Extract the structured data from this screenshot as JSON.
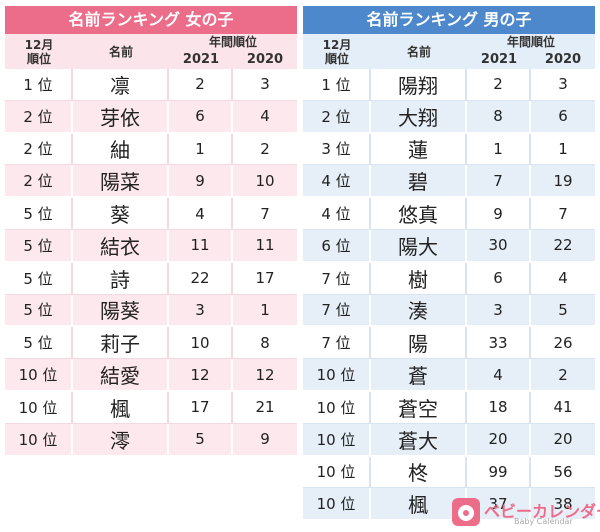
{
  "girls": {
    "title": "名前ランキング 女の子",
    "header": {
      "rank_line1": "12月",
      "rank_line2": "順位",
      "name": "名前",
      "annual": "年間順位",
      "y2021": "2021",
      "y2020": "2020"
    },
    "rows": [
      {
        "rank": "1 位",
        "name": "凛",
        "r2021": "2",
        "r2020": "3"
      },
      {
        "rank": "2 位",
        "name": "芽依",
        "r2021": "6",
        "r2020": "4"
      },
      {
        "rank": "2 位",
        "name": "紬",
        "r2021": "1",
        "r2020": "2"
      },
      {
        "rank": "2 位",
        "name": "陽菜",
        "r2021": "9",
        "r2020": "10"
      },
      {
        "rank": "5 位",
        "name": "葵",
        "r2021": "4",
        "r2020": "7"
      },
      {
        "rank": "5 位",
        "name": "結衣",
        "r2021": "11",
        "r2020": "11"
      },
      {
        "rank": "5 位",
        "name": "詩",
        "r2021": "22",
        "r2020": "17"
      },
      {
        "rank": "5 位",
        "name": "陽葵",
        "r2021": "3",
        "r2020": "1"
      },
      {
        "rank": "5 位",
        "name": "莉子",
        "r2021": "10",
        "r2020": "8"
      },
      {
        "rank": "10 位",
        "name": "結愛",
        "r2021": "12",
        "r2020": "12"
      },
      {
        "rank": "10 位",
        "name": "楓",
        "r2021": "17",
        "r2020": "21"
      },
      {
        "rank": "10 位",
        "name": "澪",
        "r2021": "5",
        "r2020": "9"
      }
    ]
  },
  "boys": {
    "title": "名前ランキング 男の子",
    "header": {
      "rank_line1": "12月",
      "rank_line2": "順位",
      "name": "名前",
      "annual": "年間順位",
      "y2021": "2021",
      "y2020": "2020"
    },
    "rows": [
      {
        "rank": "1 位",
        "name": "陽翔",
        "r2021": "2",
        "r2020": "3"
      },
      {
        "rank": "2 位",
        "name": "大翔",
        "r2021": "8",
        "r2020": "6"
      },
      {
        "rank": "3 位",
        "name": "蓮",
        "r2021": "1",
        "r2020": "1"
      },
      {
        "rank": "4 位",
        "name": "碧",
        "r2021": "7",
        "r2020": "19"
      },
      {
        "rank": "4 位",
        "name": "悠真",
        "r2021": "9",
        "r2020": "7"
      },
      {
        "rank": "6 位",
        "name": "陽大",
        "r2021": "30",
        "r2020": "22"
      },
      {
        "rank": "7 位",
        "name": "樹",
        "r2021": "6",
        "r2020": "4"
      },
      {
        "rank": "7 位",
        "name": "湊",
        "r2021": "3",
        "r2020": "5"
      },
      {
        "rank": "7 位",
        "name": "陽",
        "r2021": "33",
        "r2020": "26"
      },
      {
        "rank": "10 位",
        "name": "蒼",
        "r2021": "4",
        "r2020": "2"
      },
      {
        "rank": "10 位",
        "name": "蒼空",
        "r2021": "18",
        "r2020": "41"
      },
      {
        "rank": "10 位",
        "name": "蒼大",
        "r2021": "20",
        "r2020": "20"
      },
      {
        "rank": "10 位",
        "name": "柊",
        "r2021": "99",
        "r2020": "56"
      },
      {
        "rank": "10 位",
        "name": "楓",
        "r2021": "37",
        "r2020": "38"
      }
    ]
  },
  "logo": {
    "text": "ベビーカレンダー",
    "sub": "Baby Calendar",
    "icon": "baby-calendar-logo-icon"
  },
  "colors": {
    "girls_accent": "#ec6d89",
    "boys_accent": "#4d88cc"
  }
}
